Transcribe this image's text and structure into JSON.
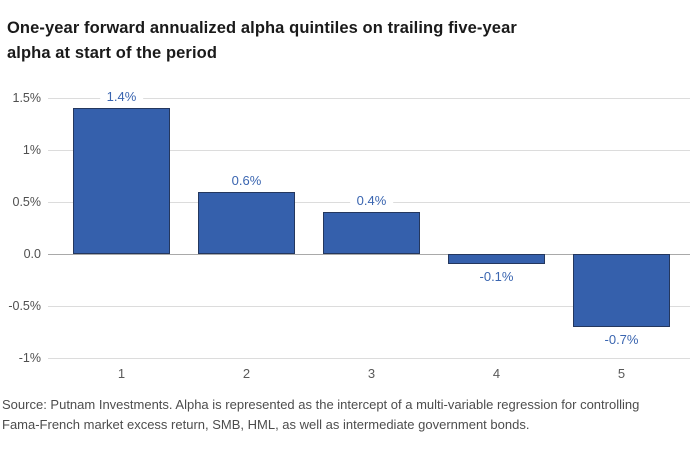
{
  "title": {
    "lines": [
      "One-year forward annualized alpha quintiles on trailing five-year",
      "alpha at start of the period"
    ]
  },
  "source": {
    "lines": [
      "Source: Putnam Investments. Alpha is represented as the intercept of a multi-variable regression for controlling",
      "Fama-French market excess return, SMB, HML, as well as intermediate government bonds."
    ]
  },
  "colors": {
    "bar_fill": "#3560ac",
    "bar_border": "#24375e",
    "value_label": "#3a65b0",
    "gridline": "#dcdcdc",
    "zero_line": "#a9a9a9",
    "axis_text": "#4f4f4f",
    "title_text": "#1a1a1a",
    "source_text": "#4d4d4d"
  },
  "chart_data": {
    "type": "bar",
    "title": "One-year forward annualized alpha quintiles on trailing five-year alpha at start of the period",
    "categories": [
      "1",
      "2",
      "3",
      "4",
      "5"
    ],
    "values": [
      1.4,
      0.6,
      0.4,
      -0.1,
      -0.7
    ],
    "value_labels": [
      "1.4%",
      "0.6%",
      "0.4%",
      "-0.1%",
      "-0.7%"
    ],
    "xlabel": "",
    "ylabel": "",
    "ylim": [
      -1,
      1.5
    ],
    "yticks": [
      {
        "value": 1.5,
        "label": "1.5%"
      },
      {
        "value": 1,
        "label": "1%"
      },
      {
        "value": 0.5,
        "label": "0.5%"
      },
      {
        "value": 0,
        "label": "0.0"
      },
      {
        "value": -0.5,
        "label": "-0.5%"
      },
      {
        "value": -1,
        "label": "-1%"
      }
    ],
    "grid": true,
    "legend": false
  }
}
